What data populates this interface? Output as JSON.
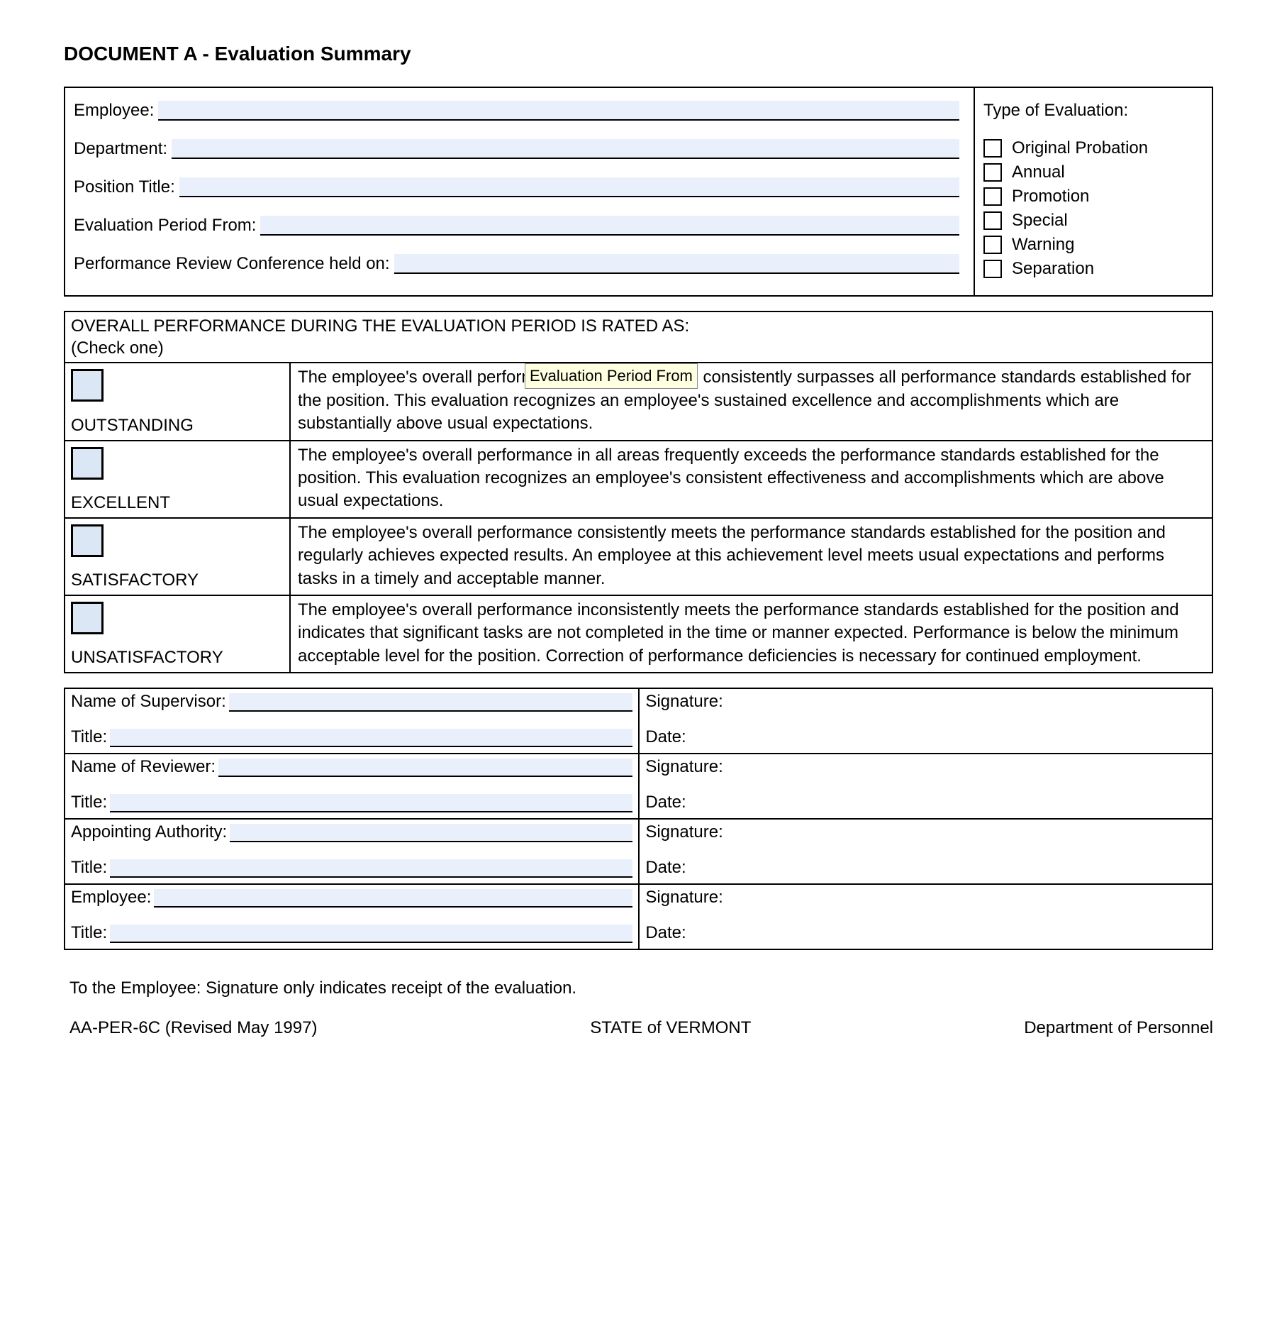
{
  "title": "DOCUMENT A - Evaluation Summary",
  "fields": {
    "employee": "Employee:",
    "department": "Department:",
    "position": "Position Title:",
    "period_from": "Evaluation Period From:",
    "conference": "Performance Review Conference held on:"
  },
  "type_header": "Type of Evaluation:",
  "eval_types": {
    "t0": "Original Probation",
    "t1": "Annual",
    "t2": "Promotion",
    "t3": "Special",
    "t4": "Warning",
    "t5": "Separation"
  },
  "rating_header_line1": "OVERALL PERFORMANCE DURING THE EVALUATION PERIOD IS RATED AS:",
  "rating_header_line2": "(Check one)",
  "ratings": {
    "r0": {
      "name": "OUTSTANDING",
      "desc": "The employee's overall performance significantly and consistently surpasses all performance standards established for the position.  This evaluation recognizes an employee's sustained excellence and accomplishments which are substantially above usual expectations."
    },
    "r1": {
      "name": "EXCELLENT",
      "desc": "The employee's overall performance in all areas frequently exceeds the performance standards established for the position.  This evaluation recognizes an employee's consistent effectiveness and accomplishments which are above usual expectations."
    },
    "r2": {
      "name": "SATISFACTORY",
      "desc": "The employee's overall performance consistently meets the performance standards established for the position and regularly achieves expected results.  An employee at this achievement level meets usual expectations and performs tasks in a timely and acceptable manner."
    },
    "r3": {
      "name": "UNSATISFACTORY",
      "desc": "The employee's overall performance inconsistently meets the performance standards established for the position and indicates that significant tasks are not completed in the time or manner expected.  Performance is below the minimum acceptable level for the position.  Correction of performance deficiencies is necessary for continued employment."
    }
  },
  "tooltip": "Evaluation Period From",
  "sig": {
    "supervisor": "Name of Supervisor:",
    "reviewer": "Name of Reviewer:",
    "appointing": "Appointing Authority:",
    "employee": "Employee:",
    "title": "Title:",
    "signature": "Signature:",
    "date": "Date:"
  },
  "footer_note": "To the Employee:  Signature only indicates receipt of the evaluation.",
  "footer": {
    "left": "AA-PER-6C (Revised May 1997)",
    "center": "STATE of VERMONT",
    "right": "Department of Personnel"
  }
}
